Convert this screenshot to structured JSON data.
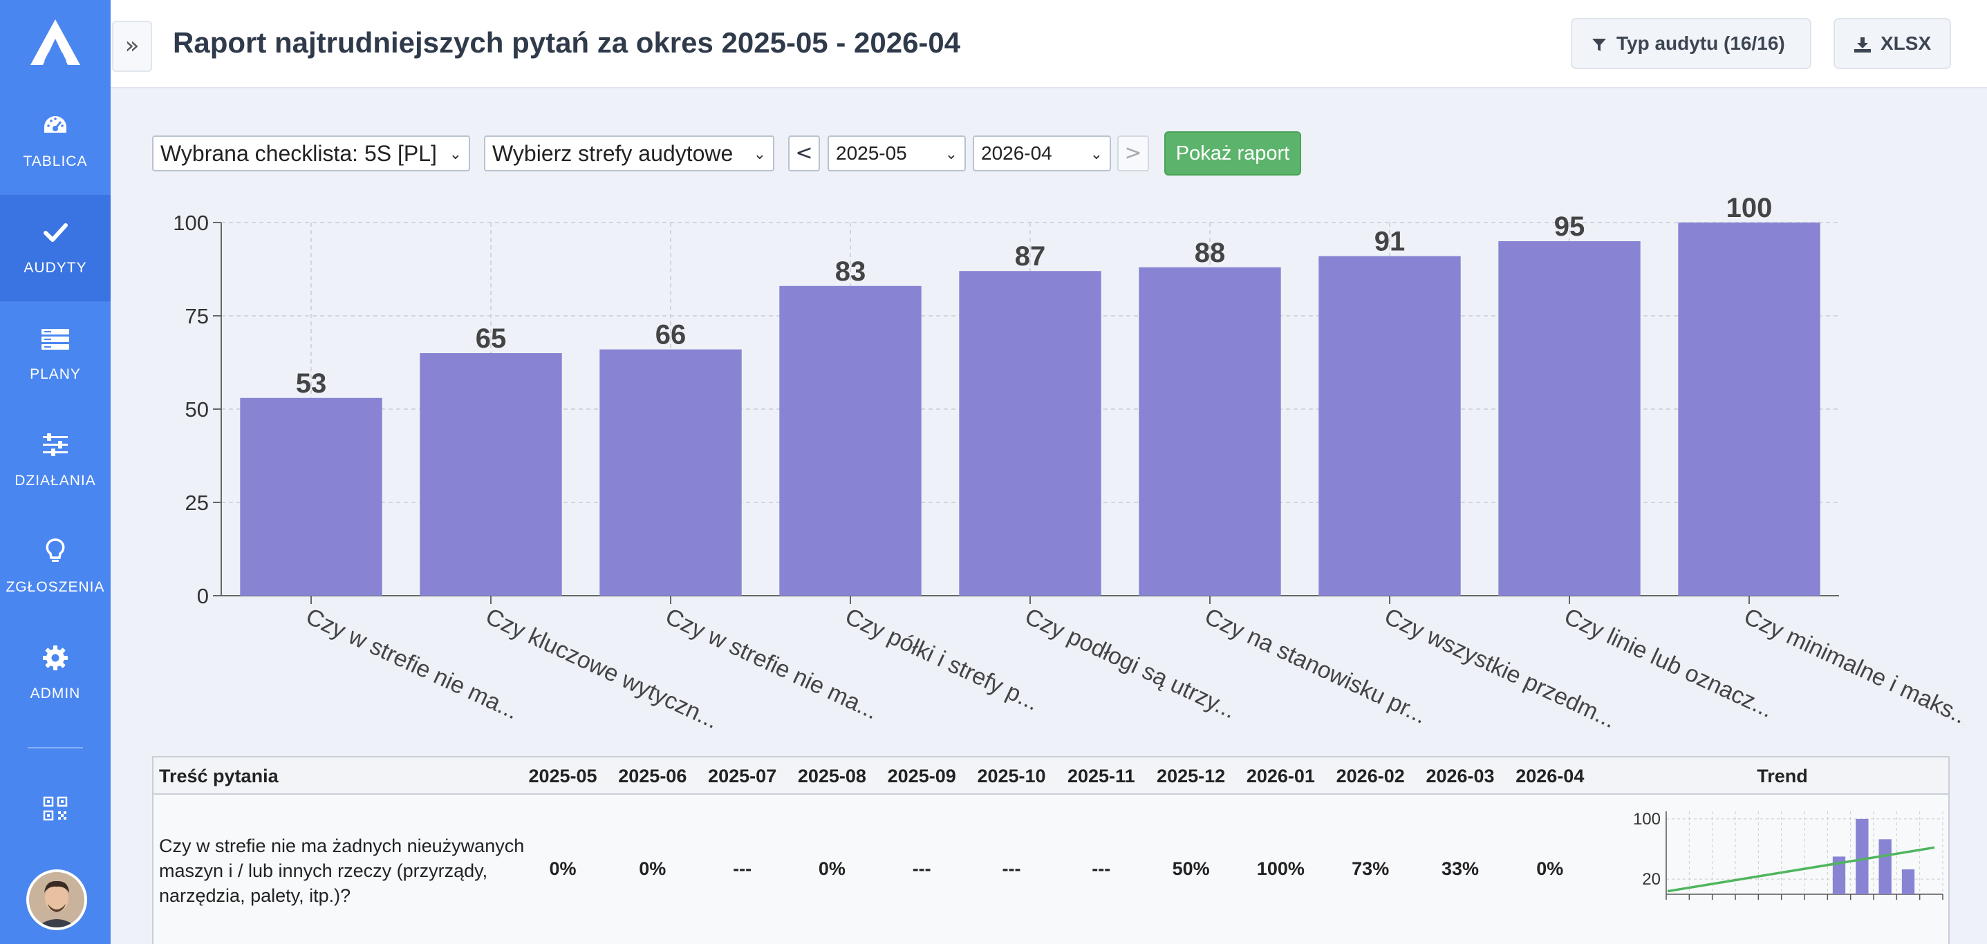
{
  "header": {
    "title": "Raport najtrudniejszych pytań za okres 2025-05 - 2026-04",
    "collapse_label": "»",
    "audit_type_button": "Typ audytu (16/16)",
    "xlsx_button": "XLSX"
  },
  "sidebar": {
    "items": [
      {
        "label": "TABLICA",
        "icon": "dashboard-icon"
      },
      {
        "label": "AUDYTY",
        "icon": "check-icon",
        "active": true
      },
      {
        "label": "PLANY",
        "icon": "list-icon"
      },
      {
        "label": "DZIAŁANIA",
        "icon": "sliders-icon"
      },
      {
        "label": "ZGŁOSZENIA",
        "icon": "lightbulb-icon"
      },
      {
        "label": "ADMIN",
        "icon": "gear-icon"
      }
    ],
    "qr_icon": "qr-code-icon",
    "avatar": "user-avatar"
  },
  "filters": {
    "checklist": "Wybrana checklista: 5S [PL]",
    "zones": "Wybierz strefy audytowe",
    "prev": "<",
    "from": "2025-05",
    "to": "2026-04",
    "next": ">",
    "show": "Pokaż raport"
  },
  "colors": {
    "sidebar": "#4a86f0",
    "bar": "#8884d3",
    "accent_green": "#5cb36b",
    "trend_line": "#4fb55e"
  },
  "chart_data": {
    "type": "bar",
    "categories": [
      "Czy w strefie nie ma...",
      "Czy kluczowe wytyczn...",
      "Czy w strefie nie ma...",
      "Czy półki i strefy p...",
      "Czy podłogi są utrzy...",
      "Czy na stanowisku pr...",
      "Czy wszystkie przedm...",
      "Czy linie lub oznacz...",
      "Czy minimalne i maks..."
    ],
    "values": [
      53,
      65,
      66,
      83,
      87,
      88,
      91,
      95,
      100
    ],
    "ylim": [
      0,
      100
    ],
    "yticks": [
      0,
      25,
      50,
      75,
      100
    ],
    "grid": true,
    "data_labels": true
  },
  "table": {
    "headers": [
      "Treść pytania",
      "2025-05",
      "2025-06",
      "2025-07",
      "2025-08",
      "2025-09",
      "2025-10",
      "2025-11",
      "2025-12",
      "2026-01",
      "2026-02",
      "2026-03",
      "2026-04",
      "Trend"
    ],
    "rows": [
      {
        "question": "Czy w strefie nie ma żadnych nieużywanych maszyn i / lub innych rzeczy (przyrządy, narzędzia, palety, itp.)?",
        "values": [
          "0%",
          "0%",
          "---",
          "0%",
          "---",
          "---",
          "---",
          "50%",
          "100%",
          "73%",
          "33%",
          "0%"
        ],
        "trend": {
          "yticks": [
            "100",
            "20"
          ],
          "values": [
            null,
            null,
            null,
            null,
            null,
            null,
            null,
            50,
            100,
            73,
            33,
            null
          ]
        }
      }
    ]
  }
}
